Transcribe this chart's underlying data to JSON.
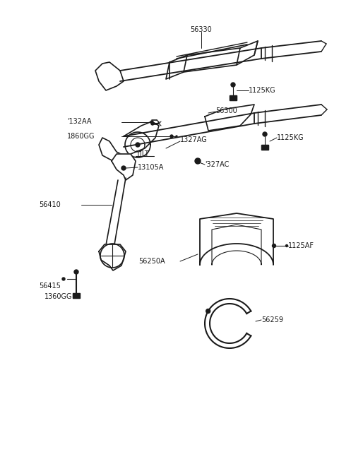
{
  "bg_color": "#ffffff",
  "line_color": "#1a1a1a",
  "label_color": "#1a1a1a",
  "label_fontsize": 7.0,
  "figsize": [
    4.8,
    6.57
  ],
  "dpi": 100,
  "xlim": [
    0,
    480
  ],
  "ylim": [
    0,
    657
  ]
}
